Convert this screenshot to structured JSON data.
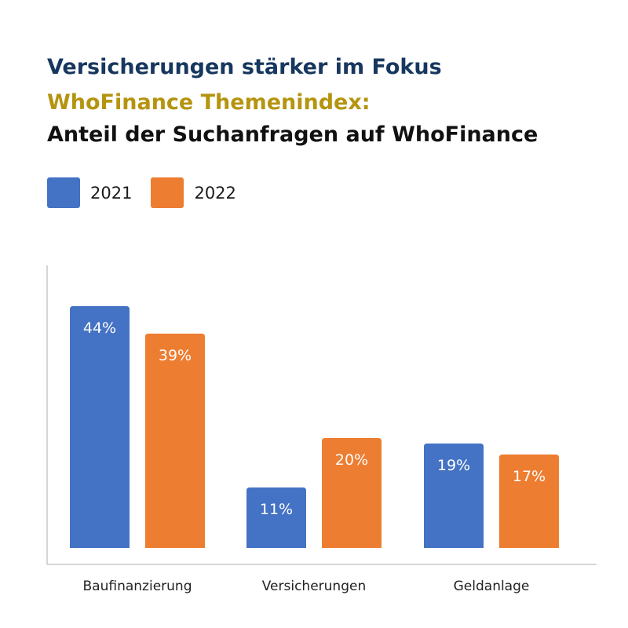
{
  "titles": {
    "line1": "Versicherungen stärker im Fokus",
    "line2": "WhoFinance Themenindex:",
    "line3": "Anteil der Suchanfragen auf WhoFinance"
  },
  "colors": {
    "title1": "#17375e",
    "title2": "#b5940f",
    "title3": "#111111",
    "axis": "#c8c8c8"
  },
  "legend": [
    {
      "label": "2021",
      "color": "#4472c4"
    },
    {
      "label": "2022",
      "color": "#ed7d31"
    }
  ],
  "chart_data": {
    "type": "bar",
    "title": "Versicherungen stärker im Fokus",
    "subtitle": "WhoFinance Themenindex: Anteil der Suchanfragen auf WhoFinance",
    "categories": [
      "Baufinanzierung",
      "Versicherungen",
      "Geldanlage"
    ],
    "series": [
      {
        "name": "2021",
        "values": [
          44,
          11,
          19
        ],
        "labels": [
          "44%",
          "11%",
          "19%"
        ],
        "color": "#4472c4"
      },
      {
        "name": "2022",
        "values": [
          39,
          20,
          17
        ],
        "labels": [
          "39%",
          "20%",
          "17%"
        ],
        "color": "#ed7d31"
      }
    ],
    "unit": "%",
    "xlabel": "",
    "ylabel": "",
    "grid": false,
    "legend_position": "top-left"
  }
}
